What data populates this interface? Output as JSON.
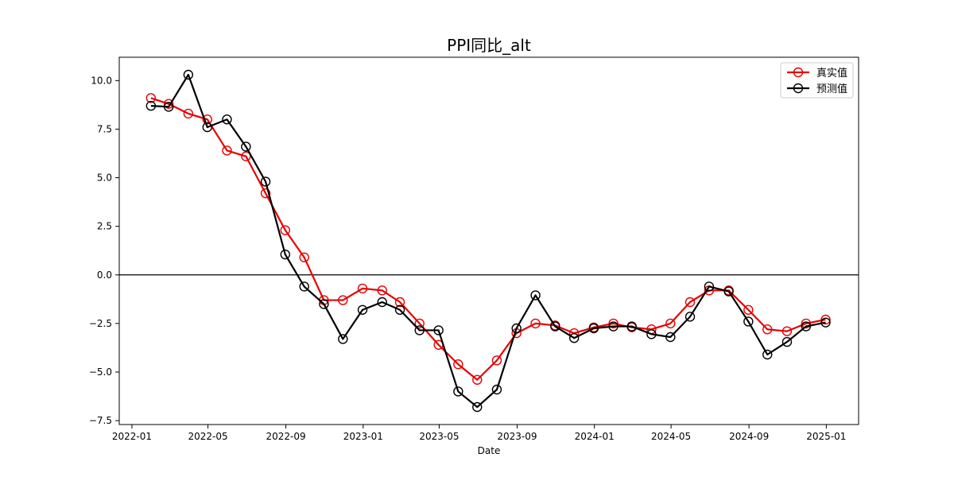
{
  "chart_data": {
    "type": "line",
    "title": "PPI同比_alt",
    "xlabel": "Date",
    "ylabel": "",
    "ylim": [
      -7.7,
      11.2
    ],
    "xlim": [
      "2021-12-12",
      "2025-02-21"
    ],
    "yticks": [
      10.0,
      7.5,
      5.0,
      2.5,
      0.0,
      -2.5,
      -5.0,
      -7.5
    ],
    "yticklabels": [
      "10.0",
      "7.5",
      "5.0",
      "2.5",
      "0.0",
      "−2.5",
      "−5.0",
      "−7.5"
    ],
    "xticks": [
      "2022-01-01",
      "2022-05-01",
      "2022-09-01",
      "2023-01-01",
      "2023-05-01",
      "2023-09-01",
      "2024-01-01",
      "2024-05-01",
      "2024-09-01",
      "2025-01-01"
    ],
    "xticklabels": [
      "2022-01",
      "2022-05",
      "2022-09",
      "2023-01",
      "2023-05",
      "2023-09",
      "2024-01",
      "2024-05",
      "2024-09",
      "2025-01"
    ],
    "zero_line": 0,
    "grid": false,
    "legend_position": "top-right",
    "x": [
      "2022-01-31",
      "2022-02-28",
      "2022-03-31",
      "2022-04-30",
      "2022-05-31",
      "2022-06-30",
      "2022-07-31",
      "2022-08-31",
      "2022-09-30",
      "2022-10-31",
      "2022-11-30",
      "2022-12-31",
      "2023-01-31",
      "2023-02-28",
      "2023-03-31",
      "2023-04-30",
      "2023-05-31",
      "2023-06-30",
      "2023-07-31",
      "2023-08-31",
      "2023-09-30",
      "2023-10-31",
      "2023-11-30",
      "2023-12-31",
      "2024-01-31",
      "2024-02-29",
      "2024-03-31",
      "2024-04-30",
      "2024-05-31",
      "2024-06-30",
      "2024-07-31",
      "2024-08-31",
      "2024-09-30",
      "2024-10-31",
      "2024-11-30",
      "2024-12-31"
    ],
    "series": [
      {
        "name": "真实值",
        "color": "#e60000",
        "values": [
          9.1,
          8.8,
          8.3,
          8.0,
          6.4,
          6.1,
          4.2,
          2.3,
          0.9,
          -1.3,
          -1.3,
          -0.7,
          -0.8,
          -1.4,
          -2.5,
          -3.6,
          -4.6,
          -5.4,
          -4.4,
          -3.0,
          -2.5,
          -2.6,
          -3.0,
          -2.7,
          -2.5,
          -2.7,
          -2.8,
          -2.5,
          -1.4,
          -0.8,
          -0.8,
          -1.8,
          -2.8,
          -2.9,
          -2.5,
          -2.3
        ]
      },
      {
        "name": "预测值",
        "color": "#000000",
        "values": [
          8.7,
          8.65,
          10.3,
          7.6,
          8.0,
          6.6,
          4.8,
          1.05,
          -0.6,
          -1.5,
          -3.3,
          -1.8,
          -1.4,
          -1.8,
          -2.85,
          -2.85,
          -6.0,
          -6.8,
          -5.9,
          -2.75,
          -1.05,
          -2.65,
          -3.25,
          -2.75,
          -2.65,
          -2.65,
          -3.05,
          -3.2,
          -2.15,
          -0.6,
          -0.85,
          -2.4,
          -4.1,
          -3.45,
          -2.65,
          -2.45
        ]
      }
    ]
  }
}
